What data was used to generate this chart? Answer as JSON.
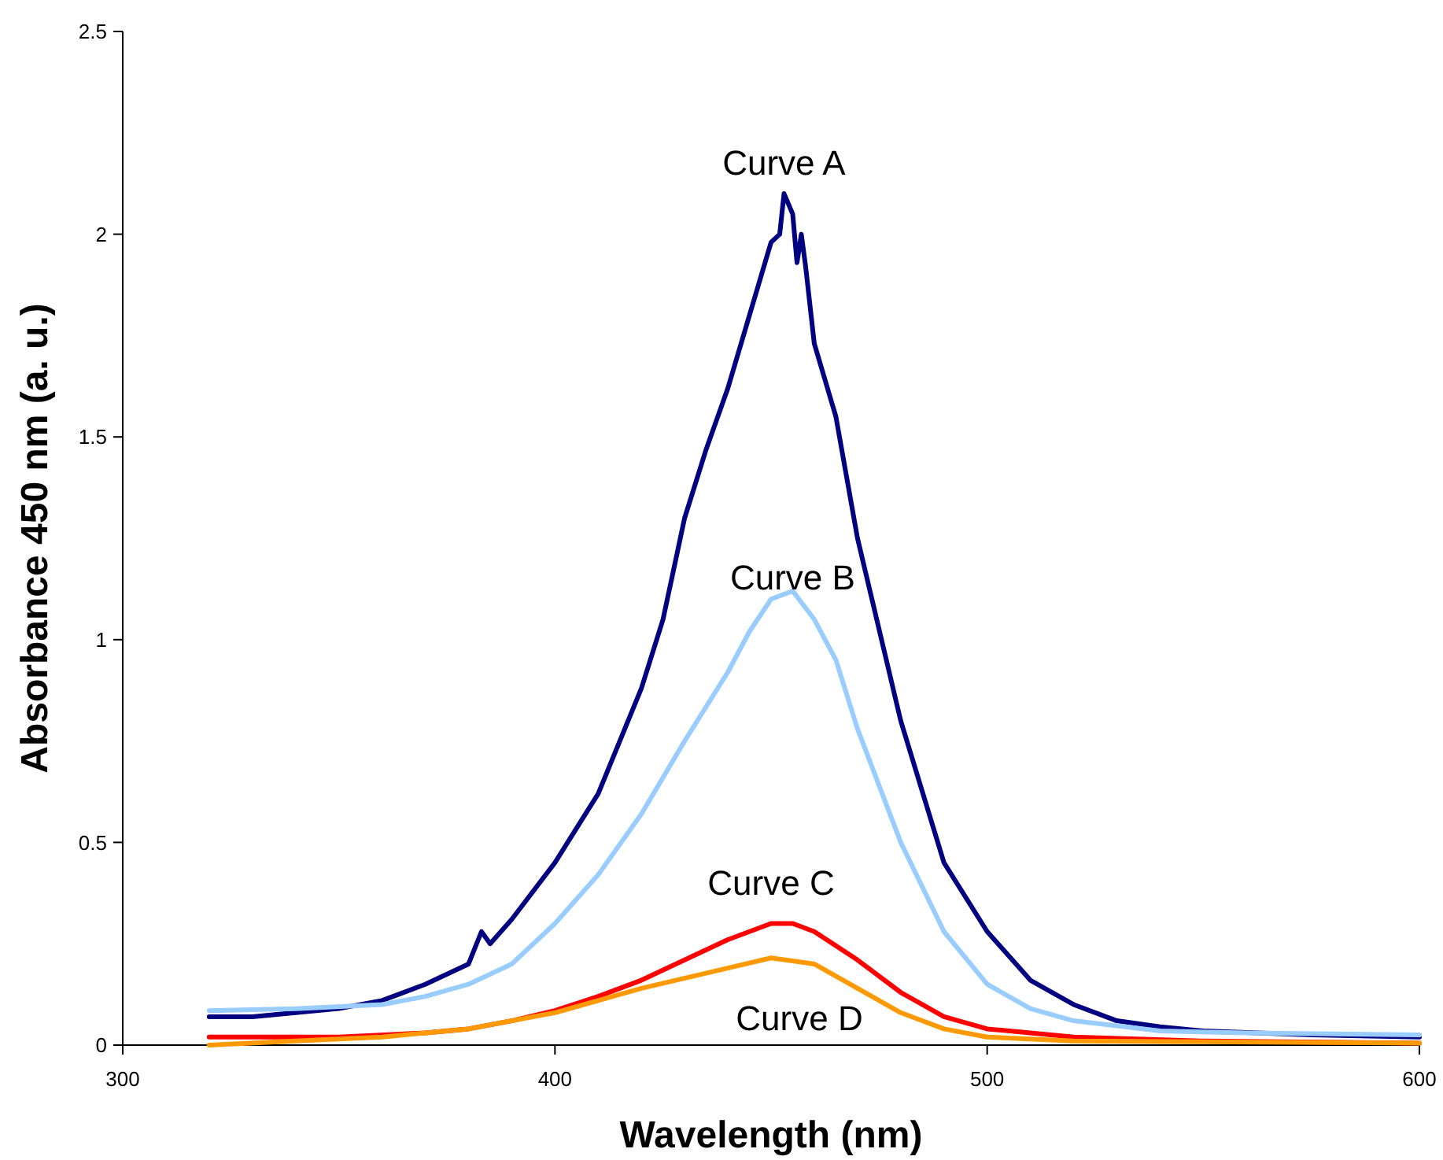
{
  "chart_data": {
    "type": "line",
    "xlabel": "Wavelength (nm)",
    "ylabel": "Absorbance 450 nm (a. u.)",
    "xlim": [
      300,
      600
    ],
    "xticks": [
      300,
      400,
      500,
      600
    ],
    "ylim": [
      0,
      2.5
    ],
    "yticks": [
      0,
      0.5,
      1,
      1.5,
      2,
      2.5
    ],
    "grid": false,
    "marker": "none",
    "line_style": "solid",
    "series": [
      {
        "name": "Curve A",
        "color": "#000080",
        "x": [
          320,
          330,
          340,
          350,
          360,
          370,
          380,
          383,
          385,
          390,
          400,
          410,
          420,
          425,
          428,
          430,
          435,
          440,
          445,
          450,
          452,
          453,
          455,
          456,
          457,
          458,
          460,
          465,
          470,
          480,
          490,
          500,
          510,
          520,
          530,
          540,
          550,
          575,
          600
        ],
        "values": [
          0.07,
          0.07,
          0.08,
          0.09,
          0.11,
          0.15,
          0.2,
          0.28,
          0.25,
          0.31,
          0.45,
          0.62,
          0.88,
          1.05,
          1.2,
          1.3,
          1.47,
          1.62,
          1.8,
          1.98,
          2.0,
          2.1,
          2.05,
          1.93,
          2.0,
          1.92,
          1.73,
          1.55,
          1.25,
          0.8,
          0.45,
          0.28,
          0.16,
          0.1,
          0.06,
          0.045,
          0.035,
          0.025,
          0.02
        ]
      },
      {
        "name": "Curve B",
        "color": "#99ccff",
        "x": [
          320,
          340,
          360,
          370,
          380,
          390,
          400,
          410,
          420,
          430,
          440,
          445,
          450,
          455,
          460,
          465,
          470,
          480,
          490,
          500,
          510,
          520,
          540,
          560,
          600
        ],
        "values": [
          0.085,
          0.09,
          0.1,
          0.12,
          0.15,
          0.2,
          0.3,
          0.42,
          0.57,
          0.75,
          0.92,
          1.02,
          1.1,
          1.12,
          1.05,
          0.95,
          0.78,
          0.5,
          0.28,
          0.15,
          0.09,
          0.06,
          0.035,
          0.03,
          0.025
        ]
      },
      {
        "name": "Curve C",
        "color": "#ff0000",
        "x": [
          320,
          350,
          370,
          380,
          390,
          400,
          410,
          420,
          430,
          440,
          450,
          455,
          460,
          470,
          480,
          490,
          500,
          520,
          550,
          600
        ],
        "values": [
          0.02,
          0.02,
          0.03,
          0.04,
          0.06,
          0.085,
          0.12,
          0.16,
          0.21,
          0.26,
          0.3,
          0.3,
          0.28,
          0.21,
          0.13,
          0.07,
          0.04,
          0.02,
          0.01,
          0.005
        ]
      },
      {
        "name": "Curve D",
        "color": "#ff9900",
        "x": [
          320,
          340,
          360,
          380,
          400,
          420,
          440,
          450,
          460,
          470,
          480,
          490,
          500,
          520,
          600
        ],
        "values": [
          0,
          0.01,
          0.02,
          0.04,
          0.08,
          0.14,
          0.19,
          0.215,
          0.2,
          0.14,
          0.08,
          0.04,
          0.02,
          0.01,
          0.005
        ]
      }
    ]
  }
}
